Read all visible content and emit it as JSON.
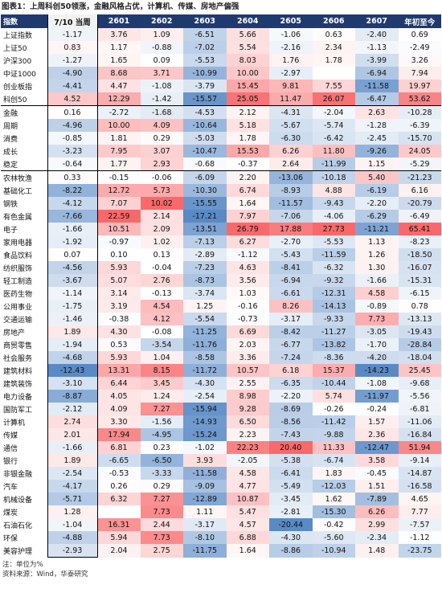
{
  "title": "图表1：上周科创50领涨，金融风格占优，计算机、传媒、房地产偏强",
  "table": {
    "header": [
      "指数",
      "7/10 当周",
      "2601",
      "2602",
      "2603",
      "2604",
      "2605",
      "2606",
      "2607",
      "年初至今"
    ],
    "rows": [
      [
        "上证指数",
        "-1.17",
        "3.76",
        "1.09",
        "-6.51",
        "5.66",
        "-1.06",
        "0.63",
        "-2.40",
        "0.69"
      ],
      [
        "上证50",
        "0.83",
        "1.17",
        "-0.88",
        "-7.02",
        "5.54",
        "-2.16",
        "2.34",
        "-1.13",
        "-2.49"
      ],
      [
        "沪深300",
        "-1.27",
        "1.65",
        "0.09",
        "-5.53",
        "8.03",
        "1.76",
        "1.78",
        "-3.99",
        "3.26"
      ],
      [
        "中证1000",
        "-4.90",
        "8.68",
        "3.71",
        "-10.99",
        "10.00",
        "-2.97",
        null,
        "-6.94",
        "7.94"
      ],
      [
        "创业板指",
        "-4.41",
        "4.47",
        "-1.08",
        "-3.79",
        "15.45",
        "9.81",
        "7.55",
        "-11.58",
        "19.97"
      ],
      [
        "科创50",
        "4.52",
        "12.29",
        "-1.42",
        "-15.57",
        "25.05",
        "11.47",
        "26.07",
        "-6.47",
        "53.62"
      ],
      [
        "金融",
        "0.16",
        "-2.72",
        "-1.68",
        "-4.53",
        "2.12",
        "-4.31",
        "-2.04",
        "2.63",
        "-10.28"
      ],
      [
        "周期",
        "-4.96",
        "10.00",
        "4.09",
        "-10.64",
        "5.18",
        "-5.67",
        "-5.74",
        "-1.28",
        "-6.39"
      ],
      [
        "消费",
        "-0.85",
        "1.81",
        "0.29",
        "-5.03",
        "1.78",
        "-6.30",
        "-6.42",
        "-2.45",
        "-15.70"
      ],
      [
        "成长",
        "-3.23",
        "7.95",
        "3.07",
        "-10.47",
        "15.53",
        "6.26",
        "11.80",
        "-9.26",
        "24.05"
      ],
      [
        "稳定",
        "-0.64",
        "1.77",
        "2.93",
        "-0.68",
        "-0.37",
        "2.64",
        "-11.99",
        "1.15",
        "-5.29"
      ],
      [
        "农林牧渔",
        "0.33",
        "-0.15",
        "-0.06",
        "-6.09",
        "2.20",
        "-13.06",
        "-10.18",
        "5.40",
        "-21.23"
      ],
      [
        "基础化工",
        "-8.22",
        "12.72",
        "5.73",
        "-10.30",
        "6.74",
        "-8.93",
        "4.88",
        "-6.19",
        "6.16"
      ],
      [
        "钢铁",
        "-4.12",
        "7.07",
        "10.02",
        "-15.55",
        "1.64",
        "-11.57",
        "-9.43",
        "-2.20",
        "-20.79"
      ],
      [
        "有色金属",
        "-7.66",
        "22.59",
        "2.14",
        "-17.21",
        "7.97",
        "-7.06",
        "-4.06",
        "-6.29",
        "-6.49"
      ],
      [
        "电子",
        "-1.66",
        "10.51",
        "2.09",
        "-13.51",
        "26.79",
        "17.88",
        "27.73",
        "-11.21",
        "65.41"
      ],
      [
        "家用电器",
        "-1.92",
        "-0.97",
        "1.02",
        "-7.13",
        "6.27",
        "-2.70",
        "-5.53",
        "1.13",
        "-8.23"
      ],
      [
        "食品饮料",
        "0.07",
        "0.10",
        "0.13",
        "-2.89",
        "-1.12",
        "-5.43",
        "-11.59",
        "1.26",
        "-18.50"
      ],
      [
        "纺织服饰",
        "-4.56",
        "5.93",
        "-0.04",
        "-7.23",
        "4.63",
        "-8.41",
        "-6.32",
        "1.30",
        "-16.07"
      ],
      [
        "轻工制造",
        "-3.67",
        "5.07",
        "2.76",
        "-8.73",
        "3.56",
        "-6.94",
        "-9.32",
        "-1.66",
        "-15.31"
      ],
      [
        "医药生物",
        "-1.14",
        "3.14",
        "-0.13",
        "-3.74",
        "1.03",
        "-6.61",
        "-12.31",
        "4.58",
        "-6.15"
      ],
      [
        "公用事业",
        "-1.75",
        "3.19",
        "4.54",
        "1.25",
        "-0.16",
        "8.26",
        "-14.13",
        "-0.89",
        "0.78"
      ],
      [
        "交通运输",
        "-1.46",
        "-0.38",
        "4.12",
        "-5.54",
        "-0.73",
        "-3.17",
        "-9.33",
        "7.73",
        "-13.13"
      ],
      [
        "房地产",
        "1.89",
        "4.30",
        "-0.08",
        "-11.25",
        "6.69",
        "-8.42",
        "-11.27",
        "-3.05",
        "-19.43"
      ],
      [
        "商贸零售",
        "-1.94",
        "0.53",
        "-3.54",
        "-11.76",
        "2.03",
        "-6.77",
        "-13.82",
        "-1.70",
        "-28.84"
      ],
      [
        "社会服务",
        "-4.68",
        "5.93",
        "1.04",
        "-8.58",
        "3.36",
        "-7.24",
        "-8.36",
        "-4.20",
        "-18.04"
      ],
      [
        "建筑材料",
        "-12.43",
        "13.31",
        "8.15",
        "-11.72",
        "10.57",
        "6.18",
        "15.37",
        "-14.23",
        "25.45"
      ],
      [
        "建筑装饰",
        "-3.10",
        "6.44",
        "3.45",
        "-4.30",
        "2.55",
        "-6.35",
        "-10.44",
        "-1.08",
        "-9.68"
      ],
      [
        "电力设备",
        "-8.87",
        "4.05",
        "1.24",
        "-2.54",
        "8.98",
        "-2.20",
        "5.74",
        "-11.97",
        "-5.56"
      ],
      [
        "国防军工",
        "-2.12",
        "4.09",
        "7.27",
        "-15.94",
        "9.28",
        "-8.69",
        "-0.26",
        "-0.24",
        "-6.81"
      ],
      [
        "计算机",
        "2.74",
        "3.30",
        "-1.56",
        "-14.93",
        "6.50",
        "-8.56",
        "-11.42",
        "1.57",
        "-11.06"
      ],
      [
        "传媒",
        "2.01",
        "17.94",
        "-4.95",
        "-15.24",
        "2.23",
        "-7.43",
        "-9.88",
        "2.36",
        "-16.84"
      ],
      [
        "通信",
        "-1.66",
        "6.81",
        "0.23",
        "-1.02",
        "22.23",
        "20.40",
        "11.33",
        "-12.47",
        "51.94"
      ],
      [
        "银行",
        "1.89",
        "-6.65",
        "-6.50",
        "3.93",
        "-2.05",
        "-5.38",
        "-6.74",
        "3.58",
        "-9.14"
      ],
      [
        "非银金融",
        "-2.54",
        "-0.53",
        "-3.33",
        "-11.58",
        "4.58",
        "-6.41",
        "1.83",
        "-0.45",
        "-14.87"
      ],
      [
        "汽车",
        "-4.17",
        "0.26",
        "0.29",
        "-9.09",
        "4.77",
        "-5.49",
        "-12.03",
        "1.51",
        "-16.58"
      ],
      [
        "机械设备",
        "-5.71",
        "6.32",
        "7.27",
        "-12.89",
        "10.87",
        "-3.45",
        "1.62",
        "-7.89",
        "4.65"
      ],
      [
        "煤炭",
        "1.28",
        null,
        "7.73",
        "1.11",
        "5.47",
        "-2.81",
        "-15.30",
        "6.26",
        "7.77"
      ],
      [
        "石油石化",
        "-1.04",
        "16.31",
        "2.44",
        "-3.17",
        "4.57",
        "-20.44",
        "-0.42",
        "2.99",
        "-7.57"
      ],
      [
        "环保",
        "-4.88",
        "5.94",
        "7.73",
        "-8.10",
        "6.88",
        "-4.30",
        "-5.60",
        "-2.34",
        "-1.12"
      ],
      [
        "美容护理",
        "-2.93",
        "2.04",
        "2.75",
        "-11.75",
        "1.64",
        "-8.86",
        "-10.94",
        "1.48",
        "-23.75"
      ]
    ]
  },
  "notes": [
    "注：单位为%",
    "资料来源：Wind，华泰研究"
  ]
}
